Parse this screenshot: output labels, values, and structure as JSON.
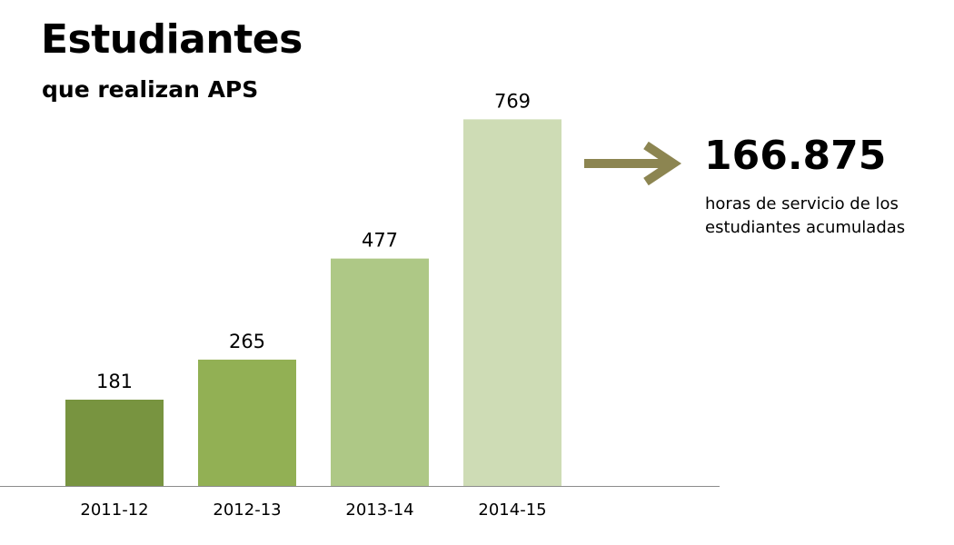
{
  "title": "Estudiantes",
  "subtitle": "que realizan APS",
  "chart_data": {
    "type": "bar",
    "categories": [
      "2011-12",
      "2012-13",
      "2013-14",
      "2014-15"
    ],
    "values": [
      181,
      265,
      477,
      769
    ],
    "data_labels": [
      "181",
      "265",
      "477",
      "769"
    ],
    "bar_colors": [
      "#789440",
      "#92b054",
      "#aec886",
      "#cedcb5"
    ],
    "ylim": [
      0,
      905
    ],
    "grid": false,
    "legend": "none",
    "xlabel": "",
    "ylabel": ""
  },
  "stat": {
    "value": "166.875",
    "description": "horas de servicio de los estudiantes acumuladas",
    "arrow_icon": "arrow-right-icon",
    "arrow_color": "#8c8551"
  }
}
